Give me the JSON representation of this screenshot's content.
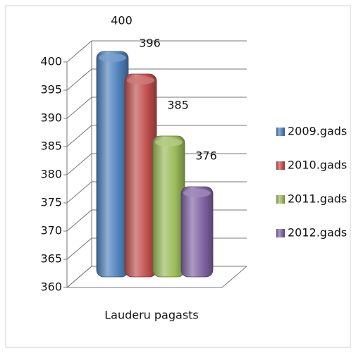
{
  "chart_data": {
    "type": "bar3d",
    "categories": [
      "Lauderu pagasts"
    ],
    "series": [
      {
        "name": "2009.gads",
        "color": "#4f81bd",
        "values": [
          400
        ]
      },
      {
        "name": "2010.gads",
        "color": "#c0504d",
        "values": [
          396
        ]
      },
      {
        "name": "2011.gads",
        "color": "#9bbb59",
        "values": [
          385
        ]
      },
      {
        "name": "2012.gads",
        "color": "#8064a2",
        "values": [
          376
        ]
      }
    ],
    "ylim": [
      360,
      400
    ],
    "yticks": [
      360,
      365,
      370,
      375,
      380,
      385,
      390,
      395,
      400
    ],
    "grid": true,
    "legend": "right"
  }
}
